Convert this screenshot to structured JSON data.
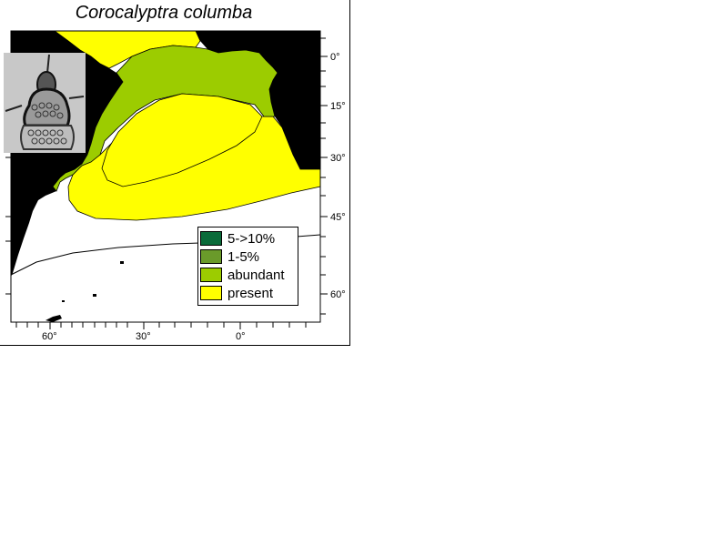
{
  "title": "Corocalyptra columba",
  "colors": {
    "land": "#000000",
    "ocean": "#ffffff",
    "five_to_ten": "#0a6b3a",
    "one_to_five": "#6a9a2a",
    "abundant": "#9ccc00",
    "present": "#ffff00"
  },
  "legend": [
    {
      "label": "5->10%",
      "color": "#0a6b3a"
    },
    {
      "label": "1-5%",
      "color": "#6a9a2a"
    },
    {
      "label": "abundant",
      "color": "#9ccc00"
    },
    {
      "label": "present",
      "color": "#ffff00"
    }
  ],
  "lat_labels": [
    "0°",
    "15°",
    "30°",
    "45°",
    "60°"
  ],
  "lon_labels": [
    "60°",
    "30°",
    "0°"
  ],
  "specimen_icon": "radiolarian-specimen-image"
}
